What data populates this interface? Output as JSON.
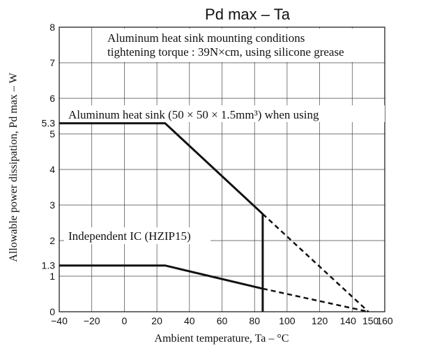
{
  "chart_data": {
    "type": "line",
    "title": "Pd max  –  Ta",
    "xlabel": "Ambient temperature, Ta  –  °C",
    "ylabel": "Allowable power dissipation, Pd max – W",
    "xlim": [
      -40,
      160
    ],
    "ylim": [
      0,
      8
    ],
    "x_ticks": [
      "−40",
      "−20",
      "0",
      "20",
      "40",
      "60",
      "80",
      "100",
      "120",
      "140",
      "150",
      "160"
    ],
    "x_tick_values": [
      -40,
      -20,
      0,
      20,
      40,
      60,
      80,
      100,
      120,
      140,
      150,
      160
    ],
    "y_ticks": [
      "0",
      "1",
      "1.3",
      "2",
      "3",
      "4",
      "5",
      "5.3",
      "6",
      "7",
      "8"
    ],
    "y_tick_values": [
      0,
      1,
      1.3,
      2,
      3,
      4,
      5,
      5.3,
      6,
      7,
      8
    ],
    "grid": true,
    "series": [
      {
        "name": "Aluminum heat sink (50 × 50 × 1.5mm³) when using",
        "solid": [
          [
            -40,
            5.3
          ],
          [
            25,
            5.3
          ],
          [
            85,
            2.75
          ]
        ],
        "dashed": [
          [
            85,
            2.75
          ],
          [
            150,
            0
          ]
        ],
        "drop": [
          [
            85,
            2.75
          ],
          [
            85,
            0
          ]
        ]
      },
      {
        "name": "Independent IC (HZIP15)",
        "solid": [
          [
            -40,
            1.3
          ],
          [
            25,
            1.3
          ],
          [
            85,
            0.65
          ]
        ],
        "dashed": [
          [
            85,
            0.65
          ],
          [
            150,
            0
          ]
        ]
      }
    ],
    "annotations": [
      "Aluminum heat sink mounting conditions",
      "tightening torque : 39N×cm, using silicone grease"
    ]
  }
}
